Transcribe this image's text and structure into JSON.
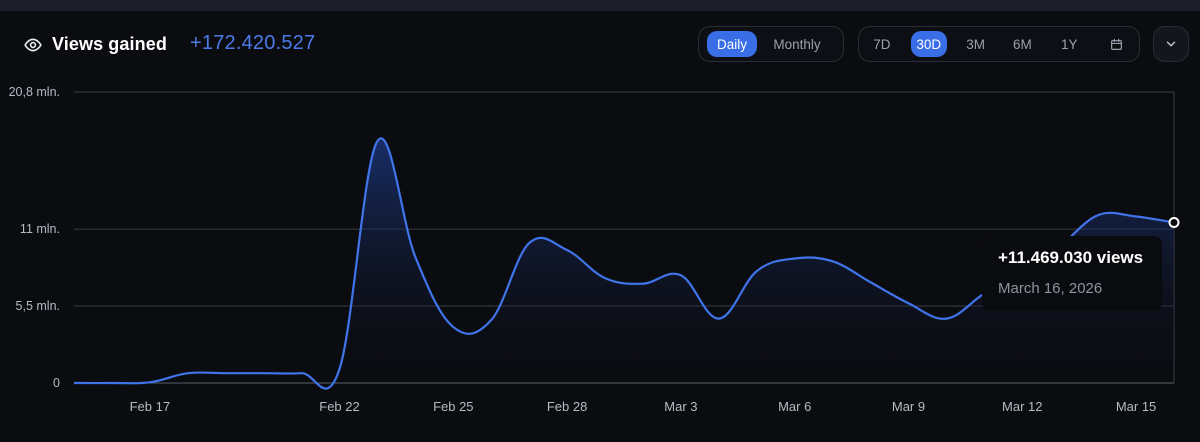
{
  "header": {
    "title": "Views gained",
    "total": "+172.420.527",
    "icon": "eye-icon"
  },
  "granularity": {
    "options": [
      "Daily",
      "Monthly"
    ],
    "selected": "Daily"
  },
  "range": {
    "options": [
      "7D",
      "30D",
      "3M",
      "6M",
      "1Y"
    ],
    "selected": "30D",
    "calendar_icon": "calendar-icon"
  },
  "menu": {
    "icon": "chevron-down-icon"
  },
  "colors": {
    "accent": "#3a6ee6",
    "line": "#3f74ea",
    "total_text": "#4b7be8",
    "background": "#0b0c10"
  },
  "tooltip": {
    "value": "+11.469.030 views",
    "date": "March 16, 2026"
  },
  "chart_data": {
    "type": "area",
    "title": "Views gained",
    "xlabel": "",
    "ylabel": "",
    "x": [
      "Feb 15",
      "Feb 16",
      "Feb 17",
      "Feb 18",
      "Feb 19",
      "Feb 20",
      "Feb 21",
      "Feb 22",
      "Feb 23",
      "Feb 24",
      "Feb 25",
      "Feb 26",
      "Feb 27",
      "Feb 28",
      "Mar 1",
      "Mar 2",
      "Mar 3",
      "Mar 4",
      "Mar 5",
      "Mar 6",
      "Mar 7",
      "Mar 8",
      "Mar 9",
      "Mar 10",
      "Mar 11",
      "Mar 12",
      "Mar 13",
      "Mar 14",
      "Mar 15",
      "Mar 16"
    ],
    "values": [
      0,
      0,
      0.05,
      0.7,
      0.7,
      0.7,
      0.7,
      1.0,
      17.3,
      9.0,
      4.0,
      4.5,
      10.0,
      9.5,
      7.5,
      7.1,
      7.7,
      4.6,
      8.0,
      8.9,
      8.7,
      7.2,
      5.7,
      4.6,
      6.4,
      7.9,
      9.8,
      12.0,
      11.9,
      11.47
    ],
    "xticks": [
      "Feb 17",
      "Feb 22",
      "Feb 25",
      "Feb 28",
      "Mar 3",
      "Mar 6",
      "Mar 9",
      "Mar 12",
      "Mar 15"
    ],
    "yticks": [
      {
        "value": 0,
        "label": "0"
      },
      {
        "value": 5.5,
        "label": "5,5 mln."
      },
      {
        "value": 11,
        "label": "11 mln."
      },
      {
        "value": 20.8,
        "label": "20,8 mln."
      }
    ],
    "ylim": [
      0,
      20.8
    ],
    "highlight_index": 29,
    "grid": true
  }
}
